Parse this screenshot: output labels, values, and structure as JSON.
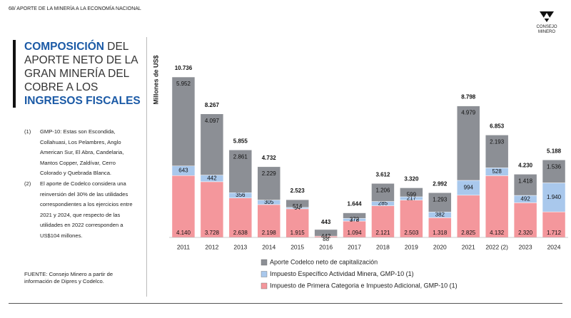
{
  "header": "68/ APORTE DE LA MINERÍA A LA ECONOMÍA NACIONAL",
  "logo": [
    "CONSEJO",
    "MINERO"
  ],
  "title": [
    {
      "text": "COMPOSICIÓN",
      "highlight": true
    },
    {
      "text": " DEL APORTE NETO DE LA GRAN MINERÍA DEL COBRE A LOS ",
      "highlight": false
    },
    {
      "text": "INGRESOS FISCALES",
      "highlight": true
    }
  ],
  "notes": [
    {
      "marker": "(1)",
      "text": "GMP-10: Estas son Escondida, Collahuasi, Los Pelambres, Anglo American Sur, El Abra, Candelaria, Mantos Copper, Zaldívar, Cerro Colorado y Quebrada Blanca."
    },
    {
      "marker": "(2)",
      "text": "El aporte de Codelco considera una reinversión del 30% de las utilidades correspondientes a los ejercicios entre 2021 y 2024, que respecto de las utilidades en 2022 corresponden a US$104 millones."
    }
  ],
  "source": "FUENTE: Consejo Minero a partir de información de Dipres y Codelco.",
  "chart_data": {
    "type": "stacked_bar",
    "y_label": "Millones de US$",
    "categories": [
      "2011",
      "2012",
      "2013",
      "2014",
      "2015",
      "2016",
      "2017",
      "2018",
      "2019",
      "2020",
      "2021",
      "2022 (2)",
      "2023",
      "2024"
    ],
    "series": [
      {
        "name": "Impuesto de Primera Categoria e Impuesto Adicional, GMP-10 (1)",
        "color": "#f4979c",
        "values": [
          4140,
          3728,
          2638,
          2198,
          1915,
          88,
          1094,
          2121,
          2503,
          1318,
          2825,
          4132,
          2320,
          1712
        ],
        "value_labels": [
          "4.140",
          "3.728",
          "2.638",
          "2.198",
          "1.915",
          "88",
          "1.094",
          "2.121",
          "2.503",
          "1.318",
          "2.825",
          "4.132",
          "2.320",
          "1.712"
        ]
      },
      {
        "name": "Impuesto Específico Actividad Minera, GMP-10 (1)",
        "color": "#a9c8ec",
        "values": [
          643,
          442,
          356,
          305,
          94,
          null,
          178,
          285,
          217,
          382,
          994,
          528,
          492,
          1940
        ],
        "value_labels": [
          "643",
          "442",
          "356",
          "305",
          "94",
          null,
          "178",
          "285",
          "217",
          "382",
          "994",
          "528",
          "492",
          "1.940"
        ]
      },
      {
        "name": "Aporte Codelco neto de capitalización",
        "color": "#8c8f95",
        "values": [
          5952,
          4097,
          2861,
          2229,
          514,
          442,
          372,
          1206,
          599,
          1293,
          4979,
          2193,
          1418,
          1536
        ],
        "value_labels": [
          "5.952",
          "4.097",
          "2.861",
          "2.229",
          "514",
          "442",
          "372",
          "1.206",
          "599",
          "1.293",
          "4.979",
          "2.193",
          "1.418",
          "1.536"
        ]
      }
    ],
    "totals": {
      "values": [
        10736,
        8267,
        5855,
        4732,
        2523,
        443,
        1644,
        3612,
        3320,
        2992,
        8798,
        6853,
        4230,
        5188
      ],
      "value_labels": [
        "10.736",
        "8.267",
        "5.855",
        "4.732",
        "2.523",
        "443",
        "1.644",
        "3.612",
        "3.320",
        "2.992",
        "8.798",
        "6.853",
        "4.230",
        "5.188"
      ]
    }
  }
}
